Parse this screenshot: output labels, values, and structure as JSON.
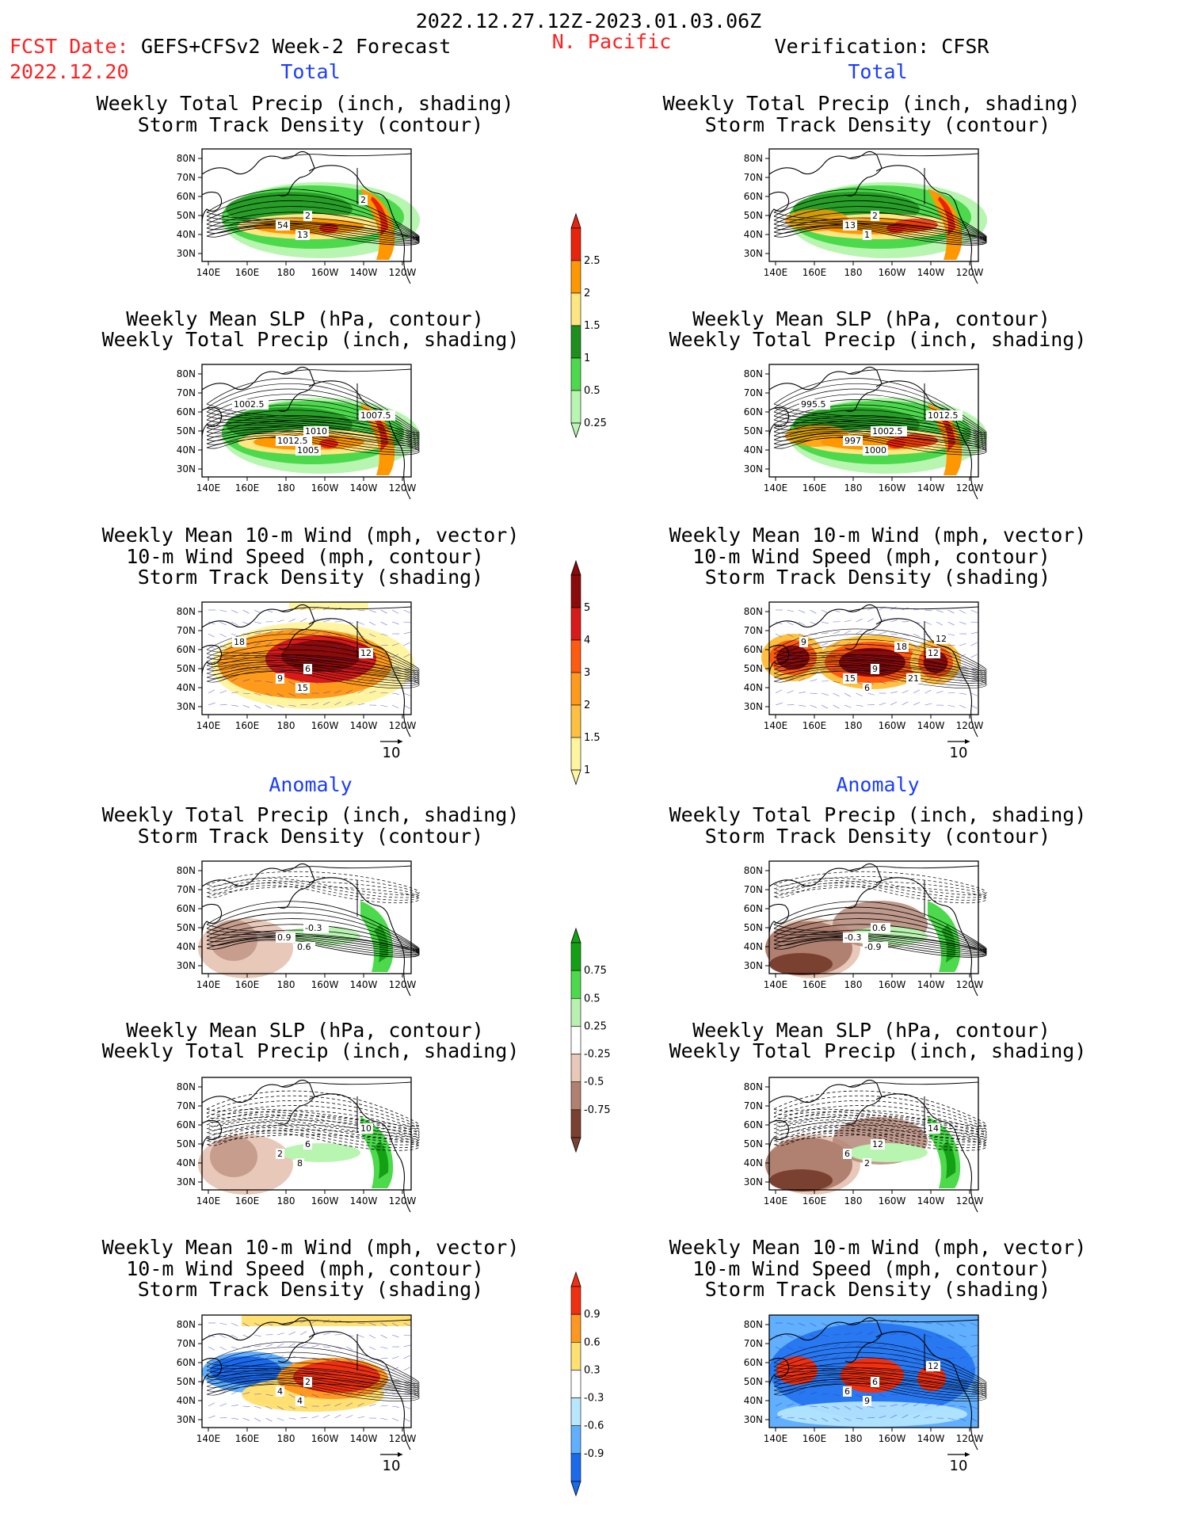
{
  "header": {
    "date_range": "2022.12.27.12Z-2023.01.03.06Z",
    "fcst_label": "FCST Date:",
    "fcst_date": "2022.12.20",
    "model": "GEFS+CFSv2 Week-2 Forecast",
    "region": "N. Pacific",
    "verification": "Verification: CFSR"
  },
  "sections": {
    "total": "Total",
    "anomaly": "Anomaly"
  },
  "titles": {
    "precip_track": [
      "Weekly Total Precip (inch, shading)",
      "Storm Track Density (contour)"
    ],
    "slp_precip": [
      "Weekly Mean SLP (hPa, contour)",
      "Weekly Total Precip (inch, shading)"
    ],
    "wind_track": [
      "Weekly Mean 10-m Wind (mph, vector)",
      "10-m Wind Speed (mph, contour)",
      "Storm Track Density (shading)"
    ]
  },
  "axes": {
    "lat_labels": [
      "80N",
      "70N",
      "60N",
      "50N",
      "40N",
      "30N"
    ],
    "lon_labels": [
      "140E",
      "160E",
      "180",
      "160W",
      "140W",
      "120W"
    ]
  },
  "vector_ref": "10",
  "colorbars": [
    {
      "id": "precip-total",
      "labels": [
        "2.5",
        "2",
        "1.5",
        "1",
        "0.5",
        "0.25"
      ],
      "colors": [
        "#e8240c",
        "#ff9800",
        "#ffe680",
        "#1e8f1e",
        "#4cd94c",
        "#b8f5b0"
      ]
    },
    {
      "id": "track-total",
      "labels": [
        "5",
        "4",
        "3",
        "2",
        "1.5",
        "1"
      ],
      "colors": [
        "#8b0a0a",
        "#d81a1a",
        "#ff5a10",
        "#ff9a1a",
        "#ffc040",
        "#fff4a0"
      ]
    },
    {
      "id": "precip-anom",
      "labels": [
        "0.75",
        "0.5",
        "0.25",
        "-0.25",
        "-0.5",
        "-0.75"
      ],
      "colors": [
        "#14a014",
        "#4cd94c",
        "#b8f0b0",
        "#ffffff",
        "#e8c8b8",
        "#b08070",
        "#7a4030"
      ]
    },
    {
      "id": "track-anom",
      "labels": [
        "0.9",
        "0.6",
        "0.3",
        "-0.3",
        "-0.6",
        "-0.9"
      ],
      "colors": [
        "#f03010",
        "#ff9820",
        "#ffe070",
        "#ffffff",
        "#b8e8ff",
        "#60b0ff",
        "#1a6aee"
      ]
    }
  ],
  "contour_labels": {
    "l1": [
      "2",
      "54",
      "13",
      "2"
    ],
    "r1": [
      "2",
      "13",
      "1"
    ],
    "l2": [
      "1010",
      "1012.5",
      "1005",
      "1007.5",
      "1002.5"
    ],
    "r2": [
      "1002.5",
      "997",
      "1000",
      "1012.5",
      "995.5"
    ],
    "l3": [
      "6",
      "9",
      "15",
      "12",
      "18"
    ],
    "r3": [
      "9",
      "15",
      "6",
      "12",
      "9",
      "18",
      "21",
      "12"
    ],
    "l4": [
      "-0.3",
      "0.9",
      "0.6"
    ],
    "r4": [
      "0.6",
      "-0.3",
      "-0.9"
    ],
    "l5": [
      "6",
      "2",
      "8",
      "10"
    ],
    "r5": [
      "12",
      "6",
      "2",
      "14"
    ],
    "l6": [
      "2",
      "4",
      "4"
    ],
    "r6": [
      "6",
      "6",
      "9",
      "12"
    ]
  }
}
